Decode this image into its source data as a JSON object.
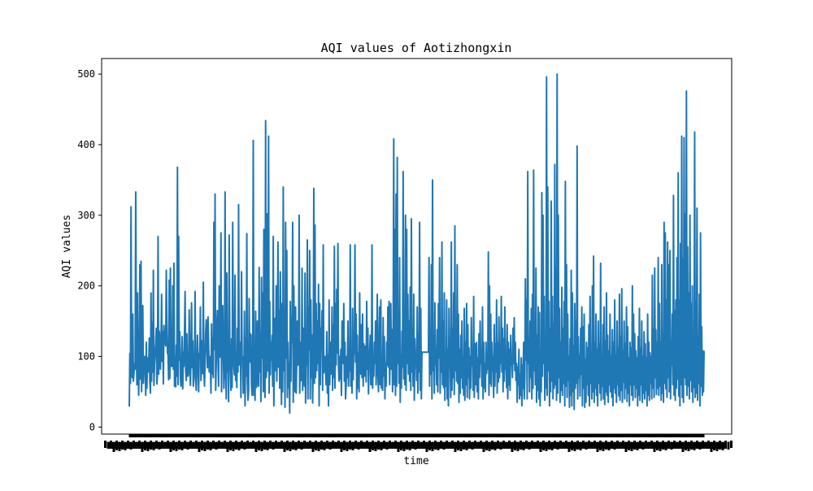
{
  "chart_data": {
    "type": "line",
    "title": "AQI values of Aotizhongxin",
    "xlabel": "time",
    "ylabel": "AQI values",
    "ylim": [
      -10,
      522
    ],
    "yticks": [
      0,
      100,
      200,
      300,
      400,
      500
    ],
    "x_tick_labels_legible": false,
    "grid": false,
    "legend": "none",
    "series": [
      {
        "color": "#1f77b4",
        "values": [
          29,
          104,
          62,
          312,
          88,
          70,
          160,
          65,
          76,
          90,
          82,
          333,
          130,
          60,
          190,
          89,
          45,
          95,
          230,
          68,
          235,
          50,
          140,
          172,
          62,
          85,
          100,
          92,
          45,
          120,
          55,
          98,
          90,
          78,
          126,
          64,
          48,
          190,
          65,
          148,
          78,
          222,
          59,
          90,
          105,
          118,
          140,
          61,
          78,
          270,
          75,
          136,
          123,
          82,
          114,
          188,
          93,
          135,
          61,
          144,
          128,
          120,
          115,
          222,
          145,
          105,
          102,
          67,
          208,
          69,
          225,
          86,
          140,
          86,
          200,
          82,
          232,
          58,
          100,
          57,
          116,
          72,
          368,
          60,
          270,
          95,
          135,
          69,
          58,
          85,
          128,
          54,
          106,
          86,
          134,
          192,
          80,
          66,
          132,
          73,
          72,
          79,
          166,
          87,
          59,
          104,
          176,
          84,
          122,
          58,
          70,
          91,
          192,
          68,
          52,
          84,
          130,
          96,
          50,
          104,
          98,
          170,
          66,
          82,
          122,
          76,
          205,
          78,
          58,
          92,
          134,
          152,
          114,
          84,
          156,
          118,
          78,
          92,
          100,
          48,
          146,
          75,
          126,
          70,
          290,
          110,
          330,
          52,
          92,
          144,
          165,
          96,
          58,
          200,
          99,
          120,
          275,
          50,
          150,
          172,
          112,
          55,
          86,
          333,
          84,
          40,
          218,
          78,
          108,
          36,
          272,
          118,
          82,
          52,
          125,
          56,
          290,
          120,
          85,
          74,
          215,
          66,
          102,
          56,
          140,
          78,
          315,
          88,
          110,
          120,
          42,
          220,
          96,
          100,
          48,
          66,
          164,
          30,
          126,
          72,
          274,
          62,
          38,
          50,
          182,
          92,
          132,
          130,
          58,
          45,
          100,
          406,
          45,
          120,
          38,
          164,
          56,
          58,
          150,
          90,
          58,
          226,
          78,
          133,
          36,
          212,
          98,
          190,
          50,
          280,
          86,
          42,
          434,
          70,
          85,
          302,
          80,
          412,
          48,
          178,
          74,
          120,
          95,
          130,
          58,
          270,
          30,
          108,
          154,
          80,
          200,
          65,
          110,
          262,
          85,
          165,
          55,
          220,
          105,
          32,
          175,
          50,
          340,
          80,
          170,
          28,
          290,
          98,
          250,
          42,
          120,
          56,
          90,
          20,
          178,
          65,
          155,
          120,
          290,
          35,
          200,
          100,
          50,
          170,
          48,
          95,
          150,
          88,
          88,
          300,
          48,
          88,
          120,
          66,
          225,
          52,
          140,
          95,
          58,
          218,
          34,
          120,
          88,
          265,
          40,
          170,
          110,
          250,
          40,
          180,
          70,
          130,
          34,
          90,
          338,
          62,
          286,
          70,
          175,
          80,
          150,
          90,
          202,
          30,
          175,
          60,
          140,
          110,
          165,
          52,
          258,
          77,
          85,
          100,
          80,
          60,
          135,
          48,
          102,
          30,
          180,
          60,
          95,
          120,
          75,
          170,
          52,
          145,
          70,
          256,
          55,
          175,
          88,
          195,
          105,
          260,
          85,
          65,
          100,
          68,
          110,
          45,
          150,
          90,
          102,
          175,
          65,
          120,
          40,
          60,
          100,
          70,
          150,
          58,
          98,
          80,
          258,
          58,
          100,
          48,
          168,
          67,
          120,
          104,
          258,
          92,
          160,
          40,
          130,
          55,
          105,
          50,
          190,
          84,
          75,
          145,
          70,
          160,
          58,
          118,
          72,
          95,
          115,
          64,
          178,
          82,
          140,
          47,
          90,
          104,
          130,
          60,
          60,
          258,
          55,
          85,
          72,
          120,
          90,
          150,
          60,
          100,
          188,
          78,
          50,
          120,
          170,
          60,
          180,
          55,
          90,
          52,
          155,
          72,
          128,
          40,
          90,
          58,
          120,
          88,
          170,
          85,
          178,
          60,
          106,
          175,
          82,
          138,
          50,
          120,
          408,
          60,
          280,
          45,
          330,
          58,
          382,
          90,
          150,
          62,
          240,
          35,
          102,
          55,
          136,
          85,
          362,
          68,
          148,
          60,
          300,
          52,
          280,
          90,
          188,
          75,
          150,
          65,
          198,
          52,
          295,
          78,
          140,
          58,
          188,
          38,
          125,
          90,
          102,
          66,
          170,
          48,
          130,
          78,
          290,
          52,
          168,
          40,
          106,
          106,
          106,
          106,
          106,
          106,
          106,
          106,
          106,
          106,
          106,
          106,
          240,
          58,
          130,
          75,
          230,
          40,
          350,
          80,
          130,
          48,
          176,
          88,
          110,
          60,
          138,
          50,
          175,
          98,
          240,
          48,
          128,
          78,
          262,
          60,
          150,
          56,
          190,
          38,
          105,
          58,
          180,
          40,
          110,
          30,
          168,
          85,
          100,
          42,
          262,
          52,
          140,
          70,
          190,
          46,
          285,
          80,
          125,
          65,
          230,
          62,
          160,
          35,
          110,
          48,
          130,
          70,
          150,
          55,
          100,
          45,
          168,
          38,
          120,
          60,
          175,
          42,
          145,
          70,
          112,
          40,
          100,
          55,
          155,
          88,
          110,
          52,
          185,
          42,
          78,
          118,
          60,
          120,
          50,
          98,
          40,
          132,
          70,
          150,
          90,
          110,
          58,
          170,
          40,
          120,
          55,
          90,
          50,
          120,
          76,
          100,
          82,
          248,
          45,
          200,
          62,
          160,
          58,
          120,
          80,
          100,
          42,
          145,
          58,
          118,
          78,
          180,
          48,
          120,
          64,
          156,
          70,
          110,
          90,
          185,
          78,
          140,
          50,
          125,
          65,
          170,
          82,
          100,
          56,
          145,
          40,
          120,
          60,
          110,
          52,
          130,
          88,
          100,
          70,
          140,
          90,
          155,
          80,
          120,
          66,
          90,
          35,
          85,
          60,
          110,
          40,
          75,
          45,
          98,
          30,
          88,
          55,
          120,
          40,
          70,
          210,
          95,
          180,
          40,
          362,
          90,
          125,
          50,
          150,
          70,
          168,
          40,
          188,
          55,
          364,
          80,
          140,
          60,
          225,
          35,
          130,
          52,
          170,
          40,
          162,
          30,
          100,
          50,
          332,
          72,
          300,
          90,
          185,
          38,
          100,
          55,
          496,
          45,
          340,
          80,
          178,
          30,
          140,
          50,
          320,
          65,
          185,
          40,
          146,
          55,
          372,
          60,
          225,
          38,
          500,
          48,
          300,
          70,
          168,
          35,
          120,
          52,
          198,
          45,
          140,
          62,
          178,
          30,
          348,
          58,
          230,
          42,
          160,
          66,
          100,
          28,
          125,
          45,
          222,
          30,
          190,
          50,
          115,
          25,
          175,
          55,
          150,
          62,
          398,
          40,
          128,
          70,
          102,
          44,
          140,
          75,
          170,
          30,
          142,
          55,
          160,
          28,
          96,
          35,
          120,
          60,
          112,
          45,
          145,
          30,
          185,
          62,
          105,
          40,
          200,
          50,
          242,
          35,
          120,
          55,
          160,
          45,
          110,
          30,
          150,
          62,
          118,
          48,
          232,
          38,
          100,
          58,
          145,
          40,
          170,
          32,
          122,
          50,
          190,
          45,
          130,
          35,
          108,
          60,
          160,
          50,
          100,
          42,
          138,
          30,
          120,
          55,
          180,
          48,
          102,
          35,
          150,
          60,
          112,
          44,
          188,
          38,
          128,
          52,
          196,
          35,
          108,
          64,
          150,
          40,
          118,
          55,
          170,
          36,
          142,
          48,
          98,
          30,
          120,
          60,
          112,
          45,
          200,
          38,
          160,
          60,
          132,
          42,
          108,
          55,
          98,
          30,
          128,
          45,
          168,
          38,
          112,
          60,
          150,
          35,
          100,
          48,
          135,
          40,
          118,
          52,
          98,
          30,
          160,
          45,
          120,
          38,
          105,
          62,
          100,
          40,
          215,
          55,
          140,
          42,
          225,
          70,
          138,
          46,
          120,
          55,
          240,
          45,
          175,
          58,
          120,
          38,
          230,
          48,
          100,
          35,
          290,
          62,
          275,
          54,
          180,
          42,
          262,
          70,
          230,
          50,
          250,
          40,
          120,
          88,
          160,
          60,
          328,
          45,
          165,
          38,
          180,
          55,
          240,
          68,
          360,
          44,
          180,
          30,
          260,
          60,
          412,
          42,
          238,
          35,
          410,
          70,
          302,
          60,
          476,
          45,
          255,
          58,
          190,
          40,
          300,
          66,
          175,
          50,
          200,
          35,
          120,
          56,
          418,
          42,
          178,
          48,
          310,
          38,
          128,
          62,
          188,
          30,
          275,
          58,
          142,
          45,
          108,
          50,
          108
        ]
      }
    ]
  }
}
